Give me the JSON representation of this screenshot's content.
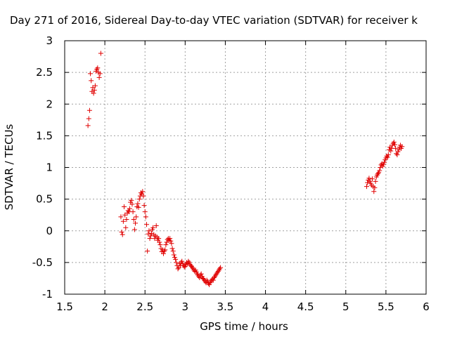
{
  "chart_data": {
    "type": "scatter",
    "title": "Day 271 of 2016, Sidereal Day-to-day VTEC variation (SDTVAR) for receiver k",
    "xlabel": "GPS time / hours",
    "ylabel": "SDTVAR / TECUs",
    "xlim": [
      1.5,
      6
    ],
    "ylim": [
      -1,
      3
    ],
    "x_ticks": [
      1.5,
      2,
      2.5,
      3,
      3.5,
      4,
      4.5,
      5,
      5.5,
      6
    ],
    "x_tick_labels": [
      "1.5",
      "2",
      "2.5",
      "3",
      "3.5",
      "4",
      "4.5",
      "5",
      "5.5",
      "6"
    ],
    "y_ticks": [
      -1,
      -0.5,
      0,
      0.5,
      1,
      1.5,
      2,
      2.5,
      3
    ],
    "y_tick_labels": [
      "-1",
      "-0.5",
      "0",
      "0.5",
      "1",
      "1.5",
      "2",
      "2.5",
      "3"
    ],
    "grid": true,
    "marker": "+",
    "color": "#e00000",
    "series": [
      {
        "name": "SDTVAR",
        "points": [
          [
            1.79,
            1.66
          ],
          [
            1.8,
            1.77
          ],
          [
            1.81,
            1.9
          ],
          [
            1.82,
            2.48
          ],
          [
            1.83,
            2.37
          ],
          [
            1.84,
            2.2
          ],
          [
            1.85,
            2.26
          ],
          [
            1.86,
            2.17
          ],
          [
            1.87,
            2.22
          ],
          [
            1.88,
            2.29
          ],
          [
            1.89,
            2.52
          ],
          [
            1.9,
            2.55
          ],
          [
            1.91,
            2.57
          ],
          [
            1.92,
            2.5
          ],
          [
            1.93,
            2.42
          ],
          [
            1.94,
            2.48
          ],
          [
            1.95,
            2.8
          ],
          [
            2.2,
            0.22
          ],
          [
            2.21,
            -0.02
          ],
          [
            2.22,
            -0.06
          ],
          [
            2.23,
            0.15
          ],
          [
            2.24,
            0.38
          ],
          [
            2.25,
            0.25
          ],
          [
            2.26,
            0.05
          ],
          [
            2.27,
            0.18
          ],
          [
            2.28,
            0.28
          ],
          [
            2.29,
            0.32
          ],
          [
            2.3,
            0.3
          ],
          [
            2.31,
            0.35
          ],
          [
            2.32,
            0.45
          ],
          [
            2.33,
            0.48
          ],
          [
            2.34,
            0.42
          ],
          [
            2.35,
            0.3
          ],
          [
            2.36,
            0.18
          ],
          [
            2.37,
            0.02
          ],
          [
            2.38,
            0.12
          ],
          [
            2.39,
            0.22
          ],
          [
            2.4,
            0.38
          ],
          [
            2.41,
            0.43
          ],
          [
            2.42,
            0.37
          ],
          [
            2.43,
            0.5
          ],
          [
            2.44,
            0.55
          ],
          [
            2.45,
            0.6
          ],
          [
            2.46,
            0.58
          ],
          [
            2.47,
            0.62
          ],
          [
            2.48,
            0.55
          ],
          [
            2.49,
            0.4
          ],
          [
            2.5,
            0.3
          ],
          [
            2.51,
            0.22
          ],
          [
            2.52,
            0.1
          ],
          [
            2.53,
            -0.32
          ],
          [
            2.54,
            -0.05
          ],
          [
            2.55,
            0.0
          ],
          [
            2.56,
            -0.12
          ],
          [
            2.57,
            -0.08
          ],
          [
            2.58,
            -0.04
          ],
          [
            2.59,
            0.02
          ],
          [
            2.6,
            0.05
          ],
          [
            2.61,
            -0.06
          ],
          [
            2.62,
            -0.12
          ],
          [
            2.63,
            -0.08
          ],
          [
            2.64,
            0.08
          ],
          [
            2.65,
            -0.1
          ],
          [
            2.66,
            -0.15
          ],
          [
            2.67,
            -0.12
          ],
          [
            2.68,
            -0.18
          ],
          [
            2.69,
            -0.22
          ],
          [
            2.7,
            -0.28
          ],
          [
            2.71,
            -0.33
          ],
          [
            2.72,
            -0.3
          ],
          [
            2.73,
            -0.36
          ],
          [
            2.74,
            -0.32
          ],
          [
            2.75,
            -0.3
          ],
          [
            2.76,
            -0.22
          ],
          [
            2.77,
            -0.18
          ],
          [
            2.78,
            -0.14
          ],
          [
            2.79,
            -0.12
          ],
          [
            2.8,
            -0.15
          ],
          [
            2.81,
            -0.12
          ],
          [
            2.82,
            -0.16
          ],
          [
            2.83,
            -0.2
          ],
          [
            2.84,
            -0.28
          ],
          [
            2.85,
            -0.32
          ],
          [
            2.86,
            -0.38
          ],
          [
            2.87,
            -0.42
          ],
          [
            2.88,
            -0.45
          ],
          [
            2.89,
            -0.5
          ],
          [
            2.9,
            -0.55
          ],
          [
            2.91,
            -0.6
          ],
          [
            2.92,
            -0.58
          ],
          [
            2.93,
            -0.52
          ],
          [
            2.94,
            -0.55
          ],
          [
            2.95,
            -0.5
          ],
          [
            2.96,
            -0.48
          ],
          [
            2.97,
            -0.52
          ],
          [
            2.98,
            -0.55
          ],
          [
            2.99,
            -0.57
          ],
          [
            3.0,
            -0.56
          ],
          [
            3.01,
            -0.53
          ],
          [
            3.02,
            -0.5
          ],
          [
            3.03,
            -0.52
          ],
          [
            3.04,
            -0.48
          ],
          [
            3.05,
            -0.5
          ],
          [
            3.06,
            -0.53
          ],
          [
            3.07,
            -0.55
          ],
          [
            3.08,
            -0.56
          ],
          [
            3.09,
            -0.58
          ],
          [
            3.1,
            -0.6
          ],
          [
            3.11,
            -0.62
          ],
          [
            3.12,
            -0.64
          ],
          [
            3.13,
            -0.62
          ],
          [
            3.14,
            -0.65
          ],
          [
            3.15,
            -0.68
          ],
          [
            3.16,
            -0.7
          ],
          [
            3.17,
            -0.72
          ],
          [
            3.18,
            -0.74
          ],
          [
            3.19,
            -0.7
          ],
          [
            3.2,
            -0.68
          ],
          [
            3.21,
            -0.72
          ],
          [
            3.22,
            -0.75
          ],
          [
            3.23,
            -0.76
          ],
          [
            3.24,
            -0.78
          ],
          [
            3.25,
            -0.8
          ],
          [
            3.26,
            -0.82
          ],
          [
            3.27,
            -0.78
          ],
          [
            3.28,
            -0.8
          ],
          [
            3.29,
            -0.83
          ],
          [
            3.3,
            -0.85
          ],
          [
            3.31,
            -0.82
          ],
          [
            3.32,
            -0.8
          ],
          [
            3.33,
            -0.78
          ],
          [
            3.34,
            -0.76
          ],
          [
            3.35,
            -0.78
          ],
          [
            3.36,
            -0.74
          ],
          [
            3.37,
            -0.72
          ],
          [
            3.38,
            -0.7
          ],
          [
            3.39,
            -0.68
          ],
          [
            3.4,
            -0.66
          ],
          [
            3.41,
            -0.64
          ],
          [
            3.42,
            -0.62
          ],
          [
            3.43,
            -0.6
          ],
          [
            3.44,
            -0.58
          ],
          [
            5.26,
            0.7
          ],
          [
            5.27,
            0.76
          ],
          [
            5.28,
            0.8
          ],
          [
            5.29,
            0.83
          ],
          [
            5.3,
            0.78
          ],
          [
            5.31,
            0.75
          ],
          [
            5.32,
            0.72
          ],
          [
            5.33,
            0.82
          ],
          [
            5.34,
            0.7
          ],
          [
            5.35,
            0.62
          ],
          [
            5.36,
            0.68
          ],
          [
            5.37,
            0.78
          ],
          [
            5.38,
            0.85
          ],
          [
            5.39,
            0.88
          ],
          [
            5.4,
            0.9
          ],
          [
            5.41,
            0.92
          ],
          [
            5.42,
            0.95
          ],
          [
            5.43,
            1.0
          ],
          [
            5.44,
            1.04
          ],
          [
            5.45,
            1.06
          ],
          [
            5.46,
            1.02
          ],
          [
            5.47,
            1.05
          ],
          [
            5.48,
            1.08
          ],
          [
            5.49,
            1.12
          ],
          [
            5.5,
            1.15
          ],
          [
            5.51,
            1.18
          ],
          [
            5.52,
            1.16
          ],
          [
            5.53,
            1.2
          ],
          [
            5.54,
            1.28
          ],
          [
            5.55,
            1.32
          ],
          [
            5.56,
            1.26
          ],
          [
            5.57,
            1.3
          ],
          [
            5.58,
            1.35
          ],
          [
            5.59,
            1.38
          ],
          [
            5.6,
            1.4
          ],
          [
            5.61,
            1.36
          ],
          [
            5.62,
            1.3
          ],
          [
            5.63,
            1.22
          ],
          [
            5.64,
            1.2
          ],
          [
            5.65,
            1.25
          ],
          [
            5.66,
            1.28
          ],
          [
            5.67,
            1.32
          ],
          [
            5.68,
            1.35
          ],
          [
            5.69,
            1.3
          ],
          [
            5.7,
            1.33
          ]
        ]
      }
    ]
  }
}
